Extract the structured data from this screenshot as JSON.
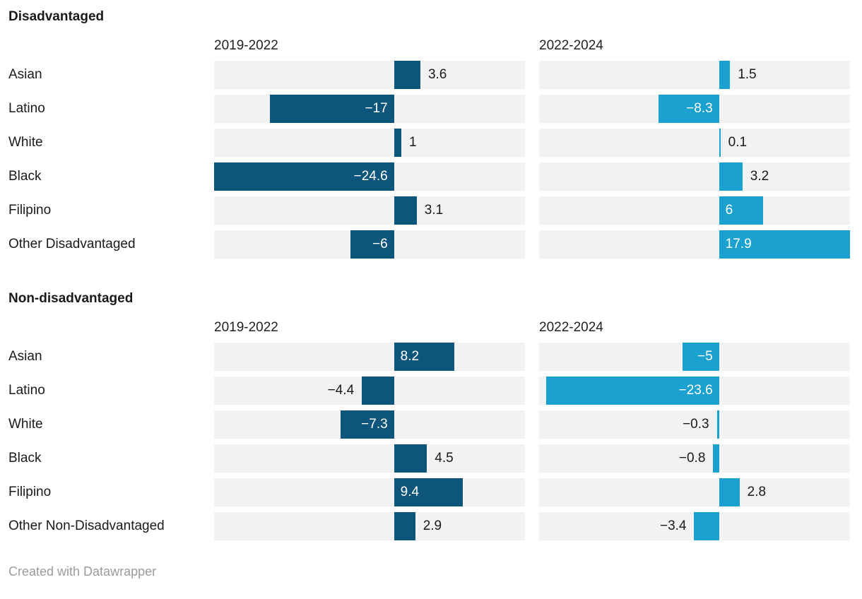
{
  "footer": {
    "credit": "Created with Datawrapper"
  },
  "chart_data": {
    "type": "bar",
    "orientation": "horizontal",
    "layout": "two side-by-side panels per group, bars on light gray full-width tracks, shared x scale, no visible axis ticks",
    "axis": {
      "min": -24.6,
      "max": 17.9,
      "zero_baseline": true
    },
    "panels": [
      "2019-2022",
      "2022-2024"
    ],
    "colors": {
      "panel_colors": [
        "#0e557b",
        "#1aa1cf"
      ],
      "track": "#f2f2f2",
      "label_outside": "#1a1a1a",
      "label_inside": "#ffffff",
      "background": "#ffffff",
      "footer_text": "#9b9b9b"
    },
    "groups": [
      {
        "title": "Disadvantaged",
        "rows": [
          {
            "label": "Asian",
            "values": [
              3.6,
              1.5
            ],
            "value_labels": [
              "3.6",
              "1.5"
            ]
          },
          {
            "label": "Latino",
            "values": [
              -17,
              -8.3
            ],
            "value_labels": [
              "−17",
              "−8.3"
            ]
          },
          {
            "label": "White",
            "values": [
              1,
              0.1
            ],
            "value_labels": [
              "1",
              "0.1"
            ]
          },
          {
            "label": "Black",
            "values": [
              -24.6,
              3.2
            ],
            "value_labels": [
              "−24.6",
              "3.2"
            ]
          },
          {
            "label": "Filipino",
            "values": [
              3.1,
              6
            ],
            "value_labels": [
              "3.1",
              "6"
            ]
          },
          {
            "label": "Other Disadvantaged",
            "values": [
              -6,
              17.9
            ],
            "value_labels": [
              "−6",
              "17.9"
            ]
          }
        ]
      },
      {
        "title": "Non-disadvantaged",
        "rows": [
          {
            "label": "Asian",
            "values": [
              8.2,
              -5
            ],
            "value_labels": [
              "8.2",
              "−5"
            ]
          },
          {
            "label": "Latino",
            "values": [
              -4.4,
              -23.6
            ],
            "value_labels": [
              "−4.4",
              "−23.6"
            ]
          },
          {
            "label": "White",
            "values": [
              -7.3,
              -0.3
            ],
            "value_labels": [
              "−7.3",
              "−0.3"
            ]
          },
          {
            "label": "Black",
            "values": [
              4.5,
              -0.8
            ],
            "value_labels": [
              "4.5",
              "−0.8"
            ]
          },
          {
            "label": "Filipino",
            "values": [
              9.4,
              2.8
            ],
            "value_labels": [
              "9.4",
              "2.8"
            ]
          },
          {
            "label": "Other Non-Disadvantaged",
            "values": [
              2.9,
              -3.4
            ],
            "value_labels": [
              "2.9",
              "−3.4"
            ]
          }
        ]
      }
    ]
  }
}
